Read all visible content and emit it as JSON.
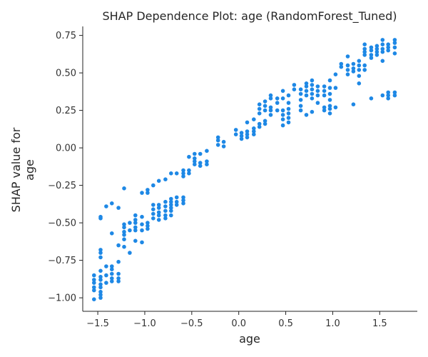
{
  "chart_data": {
    "type": "scatter",
    "title": "SHAP Dependence Plot: age (RandomForest_Tuned)",
    "xlabel": "age",
    "ylabel_lines": [
      "SHAP value for",
      "age"
    ],
    "xlim": [
      -1.66,
      1.9
    ],
    "ylim": [
      -1.09,
      0.81
    ],
    "xticks": [
      -1.5,
      -1.0,
      -0.5,
      0.0,
      0.5,
      1.0,
      1.5
    ],
    "xtick_labels": [
      "−1.5",
      "−1.0",
      "−0.5",
      "0.0",
      "0.5",
      "1.0",
      "1.5"
    ],
    "yticks": [
      -1.0,
      -0.75,
      -0.5,
      -0.25,
      0.0,
      0.25,
      0.5,
      0.75
    ],
    "ytick_labels": [
      "−1.00",
      "−0.75",
      "−0.50",
      "−0.25",
      "0.00",
      "0.25",
      "0.50",
      "0.75"
    ],
    "grid": false,
    "legend": "none",
    "point_color": "#1e88e5",
    "points": [
      [
        -1.54,
        -0.85
      ],
      [
        -1.54,
        -0.88
      ],
      [
        -1.54,
        -0.9
      ],
      [
        -1.54,
        -0.93
      ],
      [
        -1.54,
        -0.95
      ],
      [
        -1.54,
        -1.01
      ],
      [
        -1.47,
        -0.46
      ],
      [
        -1.47,
        -0.47
      ],
      [
        -1.47,
        -0.68
      ],
      [
        -1.47,
        -0.7
      ],
      [
        -1.47,
        -0.73
      ],
      [
        -1.47,
        -0.82
      ],
      [
        -1.47,
        -0.86
      ],
      [
        -1.47,
        -0.88
      ],
      [
        -1.47,
        -0.91
      ],
      [
        -1.47,
        -0.93
      ],
      [
        -1.47,
        -0.96
      ],
      [
        -1.47,
        -0.98
      ],
      [
        -1.47,
        -1.0
      ],
      [
        -1.41,
        -0.39
      ],
      [
        -1.41,
        -0.79
      ],
      [
        -1.41,
        -0.85
      ],
      [
        -1.41,
        -0.9
      ],
      [
        -1.35,
        -0.37
      ],
      [
        -1.35,
        -0.57
      ],
      [
        -1.35,
        -0.79
      ],
      [
        -1.35,
        -0.81
      ],
      [
        -1.35,
        -0.84
      ],
      [
        -1.35,
        -0.87
      ],
      [
        -1.35,
        -0.89
      ],
      [
        -1.28,
        -0.4
      ],
      [
        -1.28,
        -0.65
      ],
      [
        -1.28,
        -0.76
      ],
      [
        -1.28,
        -0.84
      ],
      [
        -1.28,
        -0.87
      ],
      [
        -1.28,
        -0.89
      ],
      [
        -1.22,
        -0.27
      ],
      [
        -1.22,
        -0.51
      ],
      [
        -1.22,
        -0.53
      ],
      [
        -1.22,
        -0.56
      ],
      [
        -1.22,
        -0.58
      ],
      [
        -1.22,
        -0.61
      ],
      [
        -1.22,
        -0.66
      ],
      [
        -1.16,
        -0.5
      ],
      [
        -1.16,
        -0.55
      ],
      [
        -1.16,
        -0.7
      ],
      [
        -1.1,
        -0.45
      ],
      [
        -1.1,
        -0.48
      ],
      [
        -1.1,
        -0.5
      ],
      [
        -1.1,
        -0.53
      ],
      [
        -1.1,
        -0.55
      ],
      [
        -1.1,
        -0.62
      ],
      [
        -1.03,
        -0.3
      ],
      [
        -1.03,
        -0.46
      ],
      [
        -1.03,
        -0.51
      ],
      [
        -1.03,
        -0.55
      ],
      [
        -1.03,
        -0.63
      ],
      [
        -0.97,
        -0.28
      ],
      [
        -0.97,
        -0.3
      ],
      [
        -0.97,
        -0.5
      ],
      [
        -0.97,
        -0.52
      ],
      [
        -0.97,
        -0.54
      ],
      [
        -0.91,
        -0.25
      ],
      [
        -0.91,
        -0.38
      ],
      [
        -0.91,
        -0.41
      ],
      [
        -0.91,
        -0.44
      ],
      [
        -0.91,
        -0.47
      ],
      [
        -0.85,
        -0.22
      ],
      [
        -0.85,
        -0.38
      ],
      [
        -0.85,
        -0.4
      ],
      [
        -0.85,
        -0.43
      ],
      [
        -0.85,
        -0.45
      ],
      [
        -0.85,
        -0.48
      ],
      [
        -0.78,
        -0.21
      ],
      [
        -0.78,
        -0.36
      ],
      [
        -0.78,
        -0.39
      ],
      [
        -0.78,
        -0.42
      ],
      [
        -0.78,
        -0.45
      ],
      [
        -0.78,
        -0.47
      ],
      [
        -0.72,
        -0.17
      ],
      [
        -0.72,
        -0.34
      ],
      [
        -0.72,
        -0.36
      ],
      [
        -0.72,
        -0.38
      ],
      [
        -0.72,
        -0.4
      ],
      [
        -0.72,
        -0.42
      ],
      [
        -0.72,
        -0.45
      ],
      [
        -0.66,
        -0.17
      ],
      [
        -0.66,
        -0.33
      ],
      [
        -0.66,
        -0.36
      ],
      [
        -0.66,
        -0.38
      ],
      [
        -0.59,
        -0.15
      ],
      [
        -0.59,
        -0.17
      ],
      [
        -0.59,
        -0.19
      ],
      [
        -0.59,
        -0.33
      ],
      [
        -0.59,
        -0.35
      ],
      [
        -0.59,
        -0.37
      ],
      [
        -0.53,
        -0.06
      ],
      [
        -0.53,
        -0.15
      ],
      [
        -0.53,
        -0.17
      ],
      [
        -0.47,
        -0.04
      ],
      [
        -0.47,
        -0.07
      ],
      [
        -0.47,
        -0.09
      ],
      [
        -0.47,
        -0.11
      ],
      [
        -0.41,
        -0.04
      ],
      [
        -0.41,
        -0.1
      ],
      [
        -0.41,
        -0.12
      ],
      [
        -0.34,
        -0.02
      ],
      [
        -0.34,
        -0.09
      ],
      [
        -0.34,
        -0.11
      ],
      [
        -0.22,
        0.07
      ],
      [
        -0.22,
        0.05
      ],
      [
        -0.22,
        0.02
      ],
      [
        -0.16,
        0.04
      ],
      [
        -0.16,
        0.01
      ],
      [
        -0.03,
        0.12
      ],
      [
        -0.03,
        0.09
      ],
      [
        0.03,
        0.06
      ],
      [
        0.03,
        0.08
      ],
      [
        0.03,
        0.1
      ],
      [
        0.09,
        0.07
      ],
      [
        0.09,
        0.09
      ],
      [
        0.09,
        0.11
      ],
      [
        0.09,
        0.17
      ],
      [
        0.16,
        0.09
      ],
      [
        0.16,
        0.11
      ],
      [
        0.16,
        0.13
      ],
      [
        0.16,
        0.19
      ],
      [
        0.22,
        0.14
      ],
      [
        0.22,
        0.16
      ],
      [
        0.22,
        0.23
      ],
      [
        0.22,
        0.26
      ],
      [
        0.22,
        0.29
      ],
      [
        0.28,
        0.16
      ],
      [
        0.28,
        0.18
      ],
      [
        0.28,
        0.25
      ],
      [
        0.28,
        0.28
      ],
      [
        0.28,
        0.31
      ],
      [
        0.34,
        0.22
      ],
      [
        0.34,
        0.25
      ],
      [
        0.34,
        0.27
      ],
      [
        0.34,
        0.33
      ],
      [
        0.34,
        0.35
      ],
      [
        0.41,
        0.25
      ],
      [
        0.41,
        0.3
      ],
      [
        0.41,
        0.33
      ],
      [
        0.47,
        0.15
      ],
      [
        0.47,
        0.19
      ],
      [
        0.47,
        0.22
      ],
      [
        0.47,
        0.25
      ],
      [
        0.47,
        0.33
      ],
      [
        0.47,
        0.38
      ],
      [
        0.53,
        0.17
      ],
      [
        0.53,
        0.2
      ],
      [
        0.53,
        0.23
      ],
      [
        0.53,
        0.26
      ],
      [
        0.53,
        0.3
      ],
      [
        0.53,
        0.35
      ],
      [
        0.59,
        0.39
      ],
      [
        0.59,
        0.42
      ],
      [
        0.66,
        0.25
      ],
      [
        0.66,
        0.28
      ],
      [
        0.66,
        0.32
      ],
      [
        0.66,
        0.36
      ],
      [
        0.66,
        0.39
      ],
      [
        0.72,
        0.22
      ],
      [
        0.72,
        0.35
      ],
      [
        0.72,
        0.38
      ],
      [
        0.72,
        0.41
      ],
      [
        0.72,
        0.43
      ],
      [
        0.78,
        0.24
      ],
      [
        0.78,
        0.33
      ],
      [
        0.78,
        0.36
      ],
      [
        0.78,
        0.39
      ],
      [
        0.78,
        0.42
      ],
      [
        0.78,
        0.45
      ],
      [
        0.84,
        0.3
      ],
      [
        0.84,
        0.35
      ],
      [
        0.84,
        0.38
      ],
      [
        0.84,
        0.41
      ],
      [
        0.91,
        0.25
      ],
      [
        0.91,
        0.27
      ],
      [
        0.91,
        0.35
      ],
      [
        0.91,
        0.38
      ],
      [
        0.91,
        0.41
      ],
      [
        0.97,
        0.23
      ],
      [
        0.97,
        0.26
      ],
      [
        0.97,
        0.28
      ],
      [
        0.97,
        0.32
      ],
      [
        0.97,
        0.36
      ],
      [
        0.97,
        0.4
      ],
      [
        0.97,
        0.45
      ],
      [
        1.03,
        0.27
      ],
      [
        1.03,
        0.4
      ],
      [
        1.03,
        0.49
      ],
      [
        1.09,
        0.54
      ],
      [
        1.09,
        0.56
      ],
      [
        1.16,
        0.49
      ],
      [
        1.16,
        0.52
      ],
      [
        1.16,
        0.55
      ],
      [
        1.16,
        0.61
      ],
      [
        1.22,
        0.29
      ],
      [
        1.22,
        0.51
      ],
      [
        1.22,
        0.53
      ],
      [
        1.22,
        0.56
      ],
      [
        1.28,
        0.43
      ],
      [
        1.28,
        0.48
      ],
      [
        1.28,
        0.52
      ],
      [
        1.28,
        0.55
      ],
      [
        1.28,
        0.58
      ],
      [
        1.34,
        0.52
      ],
      [
        1.34,
        0.55
      ],
      [
        1.34,
        0.62
      ],
      [
        1.34,
        0.64
      ],
      [
        1.34,
        0.66
      ],
      [
        1.34,
        0.69
      ],
      [
        1.41,
        0.33
      ],
      [
        1.41,
        0.6
      ],
      [
        1.41,
        0.62
      ],
      [
        1.41,
        0.65
      ],
      [
        1.41,
        0.67
      ],
      [
        1.47,
        0.62
      ],
      [
        1.47,
        0.64
      ],
      [
        1.47,
        0.66
      ],
      [
        1.47,
        0.68
      ],
      [
        1.53,
        0.35
      ],
      [
        1.53,
        0.58
      ],
      [
        1.53,
        0.64
      ],
      [
        1.53,
        0.66
      ],
      [
        1.53,
        0.69
      ],
      [
        1.53,
        0.72
      ],
      [
        1.59,
        0.33
      ],
      [
        1.59,
        0.35
      ],
      [
        1.59,
        0.37
      ],
      [
        1.59,
        0.65
      ],
      [
        1.59,
        0.67
      ],
      [
        1.59,
        0.69
      ],
      [
        1.66,
        0.35
      ],
      [
        1.66,
        0.37
      ],
      [
        1.66,
        0.63
      ],
      [
        1.66,
        0.67
      ],
      [
        1.66,
        0.7
      ],
      [
        1.66,
        0.72
      ]
    ]
  }
}
